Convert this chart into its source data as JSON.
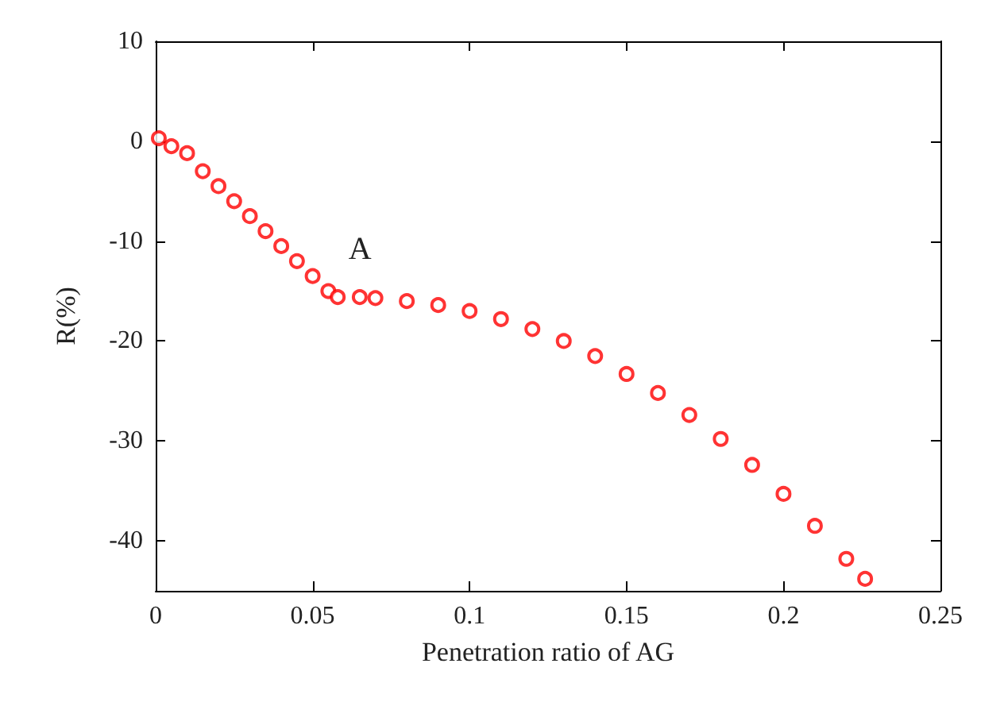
{
  "chart_data": {
    "type": "scatter",
    "xlabel": "Penetration ratio of AG",
    "ylabel": "R(%)",
    "marker": "circle",
    "grid": false,
    "xlim": [
      0,
      0.25
    ],
    "xticks": [
      0,
      0.05,
      0.1,
      0.15,
      0.2,
      0.25
    ],
    "ylim": [
      -45,
      10
    ],
    "yticks": [
      -40,
      -30,
      -20,
      -10,
      0,
      10
    ],
    "annotations": [
      {
        "text": "A",
        "x": 0.058,
        "y": -15.6
      }
    ],
    "series": [
      {
        "color": "#ff0000",
        "x": [
          0.001,
          0.005,
          0.01,
          0.015,
          0.02,
          0.025,
          0.03,
          0.035,
          0.04,
          0.045,
          0.05,
          0.055,
          0.058,
          0.065,
          0.07,
          0.08,
          0.09,
          0.1,
          0.11,
          0.12,
          0.13,
          0.14,
          0.15,
          0.16,
          0.17,
          0.18,
          0.19,
          0.2,
          0.21,
          0.22,
          0.226
        ],
        "values": [
          0.3,
          -0.5,
          -1.2,
          -3,
          -4.5,
          -6,
          -7.5,
          -9,
          -10.5,
          -12,
          -13.5,
          -15,
          -15.6,
          -15.6,
          -15.7,
          -16,
          -16.4,
          -17,
          -17.8,
          -18.8,
          -20,
          -21.5,
          -23.3,
          -25.2,
          -27.4,
          -29.8,
          -32.4,
          -35.3,
          -38.5,
          -41.8,
          -43.8
        ]
      }
    ]
  }
}
